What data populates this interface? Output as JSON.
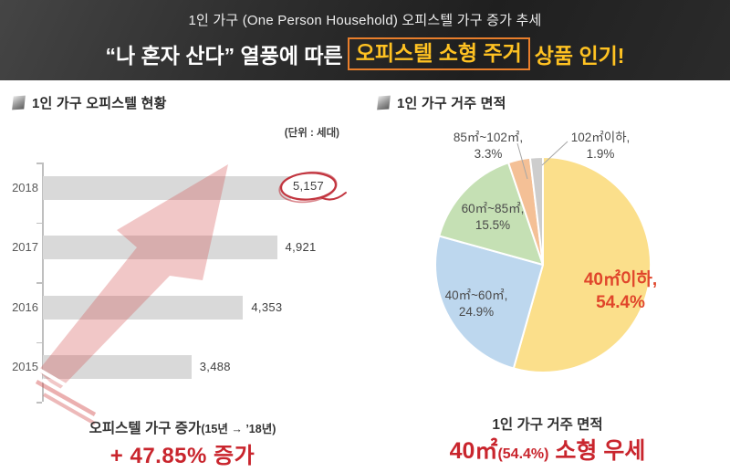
{
  "header": {
    "subtitle": "1인 가구 (One Person Household)  오피스텔 가구 증가 추세",
    "title_prefix": "“나 혼자 산다” 열풍에 따른",
    "title_boxed": "오피스텔 소형 주거",
    "title_suffix": "상품 인기!",
    "accent_text_color": "#FFC222",
    "box_border_color": "#E87E2B"
  },
  "left_panel": {
    "section_title": "1인 가구 오피스텔 현황",
    "unit_note": "(단위 : 세대)",
    "caption_title": "오피스텔 가구 증가",
    "caption_title_note": "(15년 → ’18년)",
    "caption_highlight": "+ 47.85% 증가",
    "caption_color": "#C9252D"
  },
  "right_panel": {
    "section_title": "1인 가구 거주 면적",
    "caption_title": "1인 가구 거주 면적",
    "caption_big": "40㎡",
    "caption_small": "(54.4%)",
    "caption_rest": " 소형 우세",
    "caption_color": "#C9252D"
  },
  "chart_data": [
    {
      "type": "bar",
      "orientation": "horizontal",
      "title": "1인 가구 오피스텔 현황",
      "unit": "세대",
      "categories": [
        "2018",
        "2017",
        "2016",
        "2015"
      ],
      "values": [
        5157,
        4921,
        4353,
        3488
      ],
      "value_labels": [
        "5,157",
        "4,921",
        "4,353",
        "3,488"
      ],
      "bar_color": "#D9D9D9",
      "axis_min_hint": 1000,
      "axis_max_hint": 5157,
      "grid": false,
      "trend_arrow_color": "#D35050",
      "highlight": {
        "category": "2018",
        "style": "red-ellipse",
        "color": "#C2353F"
      }
    },
    {
      "type": "pie",
      "title": "1인 가구 거주 면적",
      "start_angle_deg": 0,
      "clockwise": true,
      "emphasis_color": "#E0462B",
      "slices": [
        {
          "label": "40㎡이하",
          "pct": 54.4,
          "color": "#FBDF8B",
          "label_position": "inside",
          "emphasis": true
        },
        {
          "label": "40㎡~60㎡",
          "pct": 24.9,
          "color": "#BDD7EE",
          "label_position": "inside"
        },
        {
          "label": "60㎡~85㎡",
          "pct": 15.5,
          "color": "#C5E0B4",
          "label_position": "inside"
        },
        {
          "label": "85㎡~102㎡",
          "pct": 3.3,
          "color": "#F4C096",
          "label_position": "outside"
        },
        {
          "label": "102㎡이하",
          "pct": 1.9,
          "color": "#CDCDCD",
          "label_position": "outside"
        }
      ]
    }
  ]
}
